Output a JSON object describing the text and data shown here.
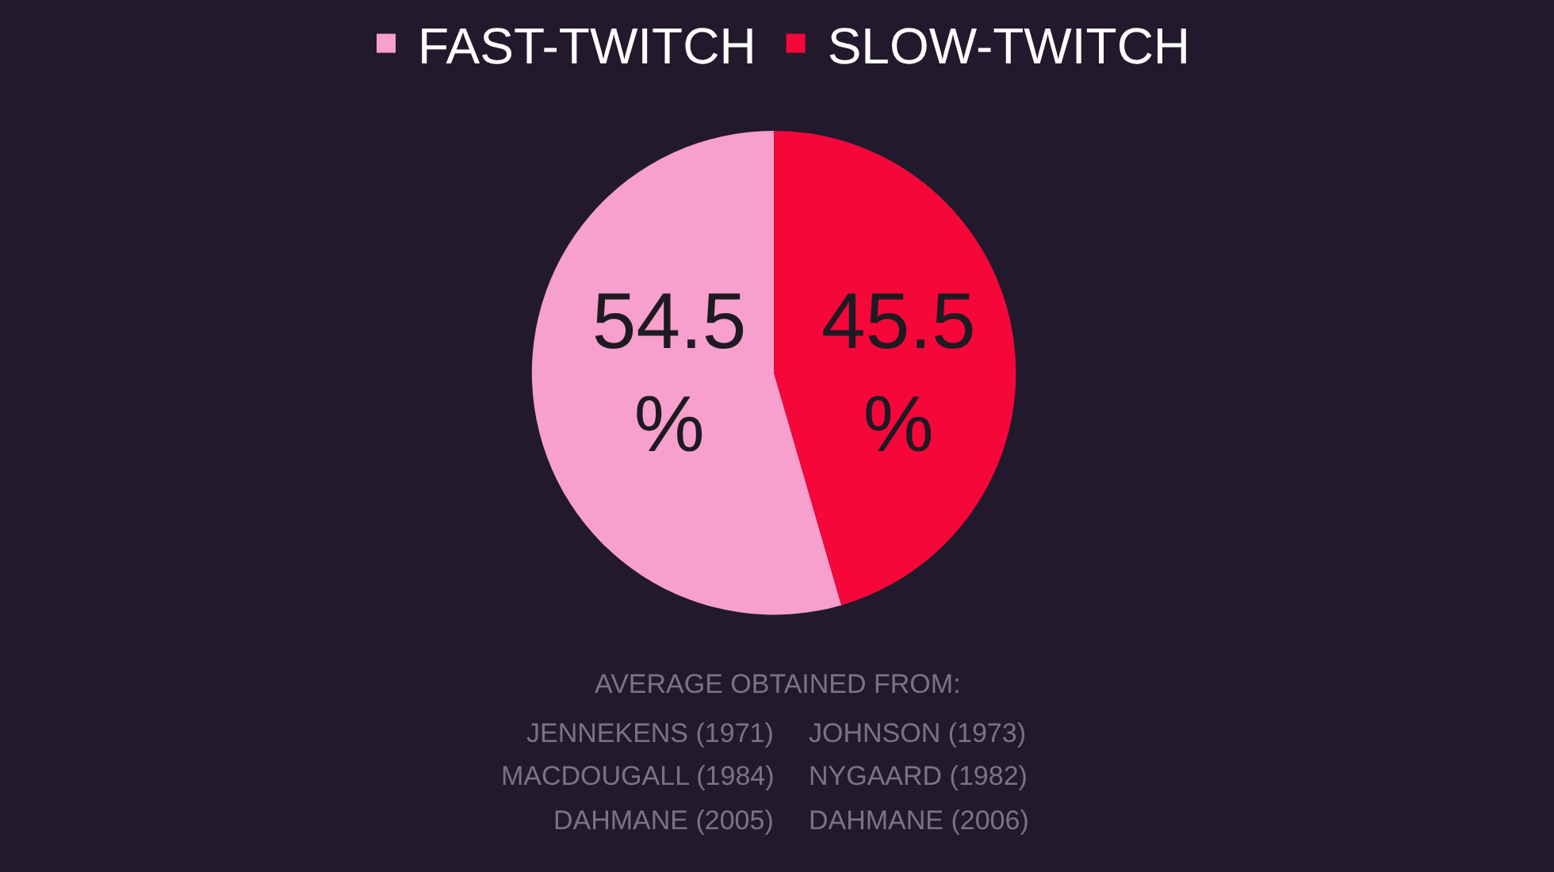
{
  "chart_data": {
    "type": "pie",
    "categories": [
      "FAST-TWITCH",
      "SLOW-TWITCH"
    ],
    "values": [
      54.5,
      45.5
    ],
    "colors": [
      "#f79fcd",
      "#f5073a"
    ],
    "value_labels": [
      "54.5\n%",
      "45.5\n%"
    ],
    "legend": "top",
    "annotations": [
      "AVERAGE OBTAINED FROM:",
      "JENNEKENS (1971)",
      "JOHNSON (1973)",
      "MACDOUGALL (1984)",
      "NYGAARD (1982)",
      "DAHMANE (2005)",
      "DAHMANE (2006)"
    ]
  }
}
